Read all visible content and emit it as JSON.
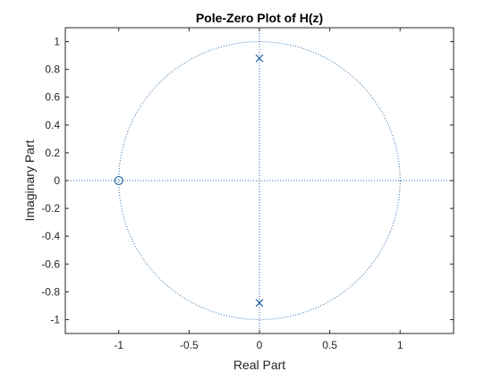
{
  "chart_data": {
    "type": "scatter",
    "title": "Pole-Zero Plot of H(z)",
    "xlabel": "Real Part",
    "ylabel": "Imaginary Part",
    "xlim": [
      -1.38,
      1.38
    ],
    "ylim": [
      -1.1,
      1.1
    ],
    "x_ticks": [
      -1,
      -0.5,
      0,
      0.5,
      1
    ],
    "x_tick_labels": [
      "-1",
      "-0.5",
      "0",
      "0.5",
      "1"
    ],
    "y_ticks": [
      1,
      0.8,
      0.6,
      0.4,
      0.2,
      0,
      -0.2,
      -0.4,
      -0.6,
      -0.8,
      -1
    ],
    "y_tick_labels": [
      "1",
      "0.8",
      "0.6",
      "0.4",
      "0.2",
      "0",
      "-0.2",
      "-0.4",
      "-0.6",
      "-0.8",
      "-1"
    ],
    "grid": false,
    "unit_circle": {
      "radius": 1,
      "style": "dotted"
    },
    "reference_axes": {
      "style": "dotted"
    },
    "zeros": [
      {
        "re": -1,
        "im": 0
      }
    ],
    "poles": [
      {
        "re": 0,
        "im": 0.88
      },
      {
        "re": 0,
        "im": -0.88
      }
    ],
    "colors": {
      "marker": "#1a5f9c",
      "guide": "#2f6fae",
      "axis": "#262626",
      "text": "#262626"
    }
  }
}
